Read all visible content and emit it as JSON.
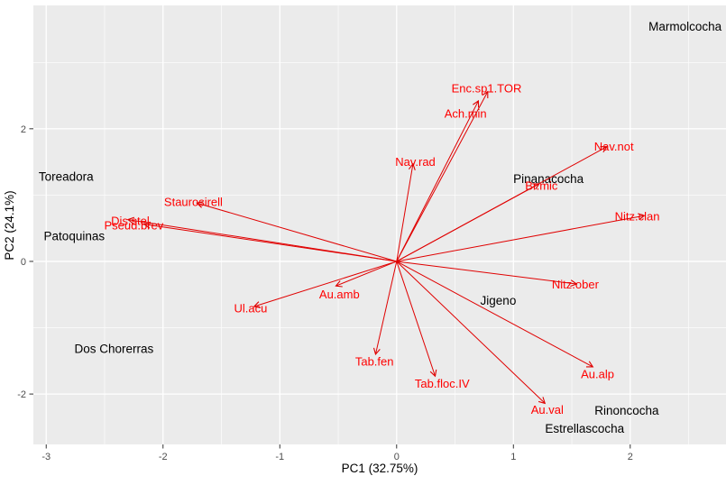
{
  "figure": {
    "background": "#FFFFFF",
    "panel_bg": "#EBEBEB",
    "grid_color": "#FFFFFF",
    "tick_color": "#333333",
    "tick_label_color": "#4D4D4D",
    "axis_title_color": "#000000",
    "site_label_color": "#000000",
    "species_label_color": "#FF0000",
    "arrow_color": "#E00000"
  },
  "chart_data": {
    "type": "scatter",
    "subtype": "pca-biplot",
    "title": "",
    "xlabel": "PC1 (32.75%)",
    "ylabel": "PC2 (24.1%)",
    "xlim": [
      -3.11,
      2.82
    ],
    "ylim": [
      -2.76,
      3.86
    ],
    "x_major_ticks": [
      -3,
      -2,
      -1,
      0,
      1,
      2
    ],
    "x_minor_ticks": [
      -2.5,
      -1.5,
      -0.5,
      0.5,
      1.5,
      2.5
    ],
    "y_major_ticks": [
      -2,
      0,
      2
    ],
    "y_minor_ticks": [
      -1,
      1,
      3
    ],
    "grid": "on",
    "legend": "none",
    "origin": [
      0,
      0
    ],
    "sites": [
      {
        "name": "Marmolcocha",
        "x": 2.47,
        "y": 3.54
      },
      {
        "name": "Toreadora",
        "x": -2.83,
        "y": 1.28
      },
      {
        "name": "Patoquinas",
        "x": -2.76,
        "y": 0.38
      },
      {
        "name": "Dos Chorerras",
        "x": -2.42,
        "y": -1.32
      },
      {
        "name": "Pinanacocha",
        "x": 1.3,
        "y": 1.24
      },
      {
        "name": "Jigeno",
        "x": 0.87,
        "y": -0.59
      },
      {
        "name": "Rinoncocha",
        "x": 1.97,
        "y": -2.25
      },
      {
        "name": "Estrellascocha",
        "x": 1.61,
        "y": -2.52
      }
    ],
    "species_arrows": [
      {
        "name": "Enc.sp1.TOR",
        "tip": [
          0.78,
          2.56
        ],
        "label": [
          0.77,
          2.61
        ]
      },
      {
        "name": "Ach.min",
        "tip": [
          0.7,
          2.42
        ],
        "label": [
          0.59,
          2.23
        ]
      },
      {
        "name": "Nav.rad",
        "tip": [
          0.14,
          1.47
        ],
        "label": [
          0.16,
          1.5
        ]
      },
      {
        "name": "Nav.not",
        "tip": [
          1.8,
          1.73
        ],
        "label": [
          1.86,
          1.73
        ]
      },
      {
        "name": "Br.mic",
        "tip": [
          1.22,
          1.17
        ],
        "label": [
          1.24,
          1.14
        ]
      },
      {
        "name": "Nitz.clan",
        "tip": [
          2.12,
          0.69
        ],
        "label": [
          2.06,
          0.68
        ]
      },
      {
        "name": "Nitz.ober",
        "tip": [
          1.54,
          -0.34
        ],
        "label": [
          1.53,
          -0.35
        ]
      },
      {
        "name": "Staurosirell",
        "tip": [
          -1.71,
          0.88
        ],
        "label": [
          -1.74,
          0.9
        ]
      },
      {
        "name": "Dis.stel",
        "tip": [
          -2.3,
          0.63
        ],
        "label": [
          -2.28,
          0.61
        ]
      },
      {
        "name": "Pseud.brev",
        "tip": [
          -2.16,
          0.56
        ],
        "label": [
          -2.25,
          0.54
        ]
      },
      {
        "name": "Au.amb",
        "tip": [
          -0.52,
          -0.37
        ],
        "label": [
          -0.49,
          -0.5
        ]
      },
      {
        "name": "Ul.acu",
        "tip": [
          -1.22,
          -0.68
        ],
        "label": [
          -1.25,
          -0.71
        ]
      },
      {
        "name": "Tab.fen",
        "tip": [
          -0.18,
          -1.4
        ],
        "label": [
          -0.19,
          -1.51
        ]
      },
      {
        "name": "Tab.floc.IV",
        "tip": [
          0.33,
          -1.73
        ],
        "label": [
          0.39,
          -1.84
        ]
      },
      {
        "name": "Au.alp",
        "tip": [
          1.68,
          -1.59
        ],
        "label": [
          1.72,
          -1.7
        ]
      },
      {
        "name": "Au.val",
        "tip": [
          1.27,
          -2.14
        ],
        "label": [
          1.29,
          -2.24
        ]
      }
    ]
  }
}
